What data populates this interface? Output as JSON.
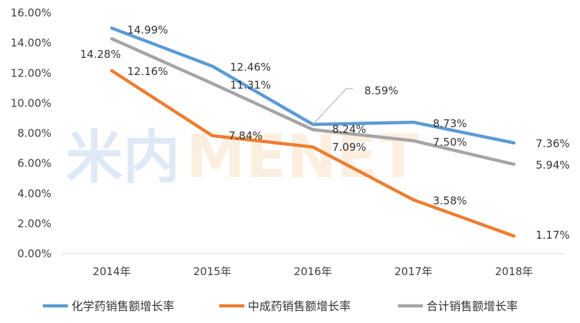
{
  "chart_data": {
    "type": "line",
    "categories": [
      "2014年",
      "2015年",
      "2016年",
      "2017年",
      "2018年"
    ],
    "series": [
      {
        "name": "化学药销售额增长率",
        "color": "#5B9BD5",
        "values": [
          14.99,
          12.46,
          8.59,
          8.73,
          7.36
        ],
        "labels": [
          "14.99%",
          "12.46%",
          "8.59%",
          "8.73%",
          "7.36%"
        ]
      },
      {
        "name": "中成药销售额增长率",
        "color": "#ED7D31",
        "values": [
          12.16,
          7.84,
          7.09,
          3.58,
          1.17
        ],
        "labels": [
          "12.16%",
          "7.84%",
          "7.09%",
          "3.58%",
          "1.17%"
        ]
      },
      {
        "name": "合计销售额增长率",
        "color": "#A5A5A5",
        "values": [
          14.28,
          11.31,
          8.24,
          7.5,
          5.94
        ],
        "labels": [
          "14.28%",
          "11.31%",
          "8.24%",
          "7.50%",
          "5.94%"
        ]
      }
    ],
    "yticks": [
      "0.00%",
      "2.00%",
      "4.00%",
      "6.00%",
      "8.00%",
      "10.00%",
      "12.00%",
      "14.00%",
      "16.00%"
    ],
    "ylim": [
      0,
      16
    ],
    "grid": false,
    "legend_position": "bottom"
  },
  "watermark": {
    "text_left": "米内",
    "text_right": "MENET"
  }
}
